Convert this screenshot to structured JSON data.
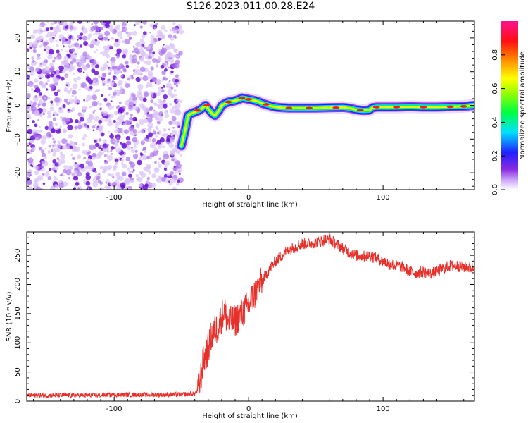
{
  "title": "S126.2023.011.00.28.E24",
  "chart_data": [
    {
      "type": "heatmap",
      "xlabel": "Height of straight line (km)",
      "ylabel": "Frequency (Hz)",
      "xlim": [
        -165,
        168
      ],
      "ylim": [
        -25,
        25
      ],
      "xticks": [
        -100,
        0,
        100
      ],
      "xtick_labels": [
        "-100",
        "0",
        "100"
      ],
      "yticks": [
        -20,
        -10,
        0,
        10,
        20
      ],
      "ytick_labels": [
        "-20",
        "-10",
        "0",
        "10",
        "20"
      ],
      "noise_region_x": [
        -165,
        -50
      ],
      "ridge": {
        "x": [
          -50,
          -47,
          -45,
          -43,
          -40,
          -37,
          -35,
          -32,
          -30,
          -27,
          -25,
          -22,
          -20,
          -17,
          -15,
          -12,
          -10,
          -7,
          -5,
          -2,
          0,
          3,
          5,
          8,
          10,
          15,
          20,
          25,
          30,
          40,
          50,
          60,
          70,
          75,
          80,
          85,
          90,
          92,
          95,
          100,
          110,
          120,
          130,
          140,
          150,
          160,
          168
        ],
        "y": [
          -12,
          -7,
          -3,
          -2.5,
          -2,
          -1.5,
          -1,
          0,
          -1,
          -2.5,
          -3,
          -1.5,
          0,
          0.7,
          1,
          1.2,
          1.4,
          1.8,
          2.2,
          2,
          1.8,
          1.6,
          1.4,
          1,
          0.6,
          0,
          -0.5,
          -0.7,
          -0.8,
          -0.8,
          -0.8,
          -0.7,
          -0.6,
          -0.8,
          -1.3,
          -1.5,
          -1.4,
          -0.7,
          -0.5,
          -0.5,
          -0.5,
          -0.4,
          -0.5,
          -0.5,
          -0.4,
          -0.3,
          0
        ]
      },
      "colorbar": {
        "label": "Normalized spectral amplitude",
        "range": [
          0,
          1
        ],
        "ticks": [
          0,
          0.2,
          0.4,
          0.6,
          0.8
        ],
        "tick_labels": [
          "0.0",
          "0.2",
          "0.4",
          "0.6",
          "0.8"
        ]
      }
    },
    {
      "type": "line",
      "xlabel": "Height of straight line (km)",
      "ylabel": "SNR (10 * v/v)",
      "xlim": [
        -165,
        168
      ],
      "ylim": [
        0,
        290
      ],
      "xticks": [
        -100,
        0,
        100
      ],
      "xtick_labels": [
        "-100",
        "0",
        "100"
      ],
      "yticks": [
        0,
        50,
        100,
        150,
        200,
        250
      ],
      "ytick_labels": [
        "0",
        "50",
        "100",
        "150",
        "200",
        "250"
      ],
      "series": [
        {
          "color": "#e8302a",
          "x": [
            -165,
            -140,
            -120,
            -100,
            -80,
            -60,
            -45,
            -40,
            -38,
            -36,
            -34,
            -30,
            -28,
            -25,
            -22,
            -20,
            -18,
            -16,
            -14,
            -10,
            -5,
            0,
            5,
            10,
            15,
            20,
            25,
            30,
            35,
            40,
            45,
            50,
            55,
            60,
            65,
            70,
            75,
            80,
            85,
            90,
            95,
            100,
            105,
            110,
            115,
            120,
            125,
            130,
            135,
            140,
            145,
            150,
            155,
            160,
            168
          ],
          "y": [
            10,
            10,
            10,
            11,
            11,
            11,
            12,
            13,
            18,
            35,
            65,
            90,
            110,
            120,
            130,
            145,
            155,
            140,
            135,
            138,
            150,
            165,
            185,
            205,
            225,
            240,
            250,
            260,
            265,
            270,
            270,
            272,
            275,
            278,
            270,
            262,
            255,
            250,
            248,
            250,
            245,
            240,
            235,
            232,
            230,
            222,
            220,
            222,
            218,
            222,
            228,
            232,
            232,
            230,
            228
          ]
        }
      ]
    }
  ]
}
